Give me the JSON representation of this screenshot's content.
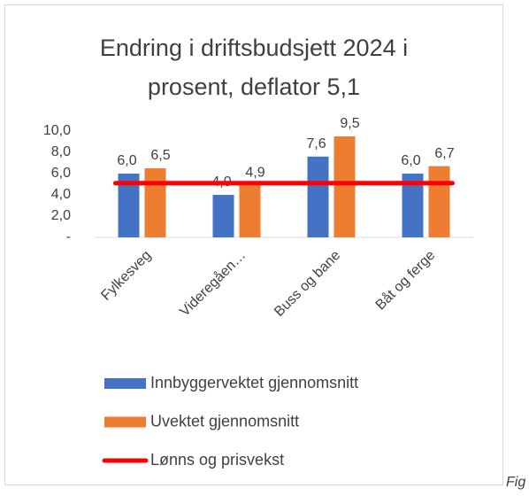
{
  "chart_data": {
    "type": "bar",
    "title": [
      "Endring i driftsbudsjett 2024 i",
      "prosent, deflator 5,1"
    ],
    "categories": [
      "Fylkesveg",
      "Videregåen…",
      "Buss og bane",
      "Båt og ferge"
    ],
    "series": [
      {
        "name": "Innbyggervektet gjennomsnitt",
        "color": "#4472c4",
        "values": [
          6.0,
          4.0,
          7.6,
          6.0
        ],
        "value_labels": [
          "6,0",
          "4,0",
          "7,6",
          "6,0"
        ]
      },
      {
        "name": "Uvektet gjennomsnitt",
        "color": "#ed7d31",
        "values": [
          6.5,
          4.9,
          9.5,
          6.7
        ],
        "value_labels": [
          "6,5",
          "4,9",
          "9,5",
          "6,7"
        ]
      },
      {
        "name": "Lønns og prisvekst",
        "type": "line",
        "color": "#ff0000",
        "values": [
          5.1,
          5.1,
          5.1,
          5.1
        ]
      }
    ],
    "ylim": [
      0,
      10
    ],
    "yticks": [
      {
        "value": 0,
        "label": "-"
      },
      {
        "value": 2,
        "label": "2,0"
      },
      {
        "value": 4,
        "label": "4,0"
      },
      {
        "value": 6,
        "label": "6,0"
      },
      {
        "value": 8,
        "label": "8,0"
      },
      {
        "value": 10,
        "label": "10,0"
      }
    ],
    "grid": false,
    "legend": "bottom"
  },
  "caption": "Fig"
}
